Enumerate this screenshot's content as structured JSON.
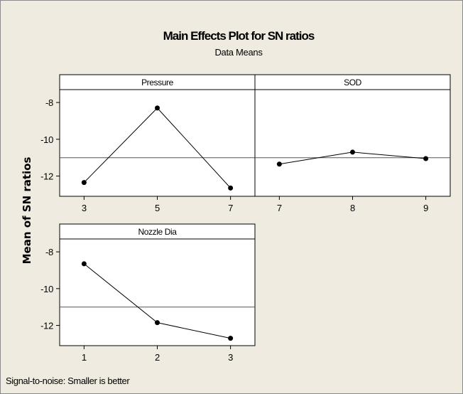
{
  "chart_data": {
    "type": "line",
    "title": "Main Effects Plot for SN ratios",
    "subtitle": "Data Means",
    "ylabel": "Mean of SN ratios",
    "footnote": "Signal-to-noise: Smaller is better",
    "ylim": [
      -13.1,
      -7.3
    ],
    "yticks": [
      "-8",
      "-10",
      "-12"
    ],
    "mean_line": -11.0,
    "grid": false,
    "panels": [
      {
        "name": "Pressure",
        "x": [
          "3",
          "5",
          "7"
        ],
        "values": [
          -12.35,
          -8.3,
          -12.65
        ]
      },
      {
        "name": "SOD",
        "x": [
          "7",
          "8",
          "9"
        ],
        "values": [
          -11.35,
          -10.7,
          -11.05
        ]
      },
      {
        "name": "Nozzle Dia",
        "x": [
          "1",
          "2",
          "3"
        ],
        "values": [
          -8.65,
          -11.85,
          -12.7
        ]
      }
    ]
  }
}
